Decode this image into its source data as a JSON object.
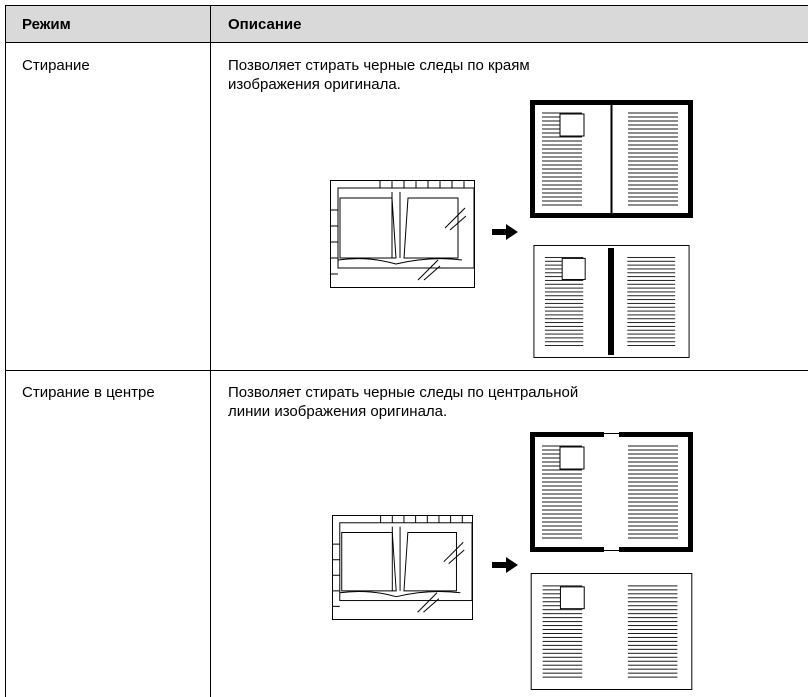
{
  "table": {
    "columns": [
      "Режим",
      "Описание"
    ],
    "rows": [
      [
        "Стирание",
        "Позволяет стирать черные следы по краям изображения оригинала."
      ],
      [
        "Стирание в центре",
        "Позволяет стирать черные следы по центральной линии изображения оригинала."
      ]
    ]
  }
}
